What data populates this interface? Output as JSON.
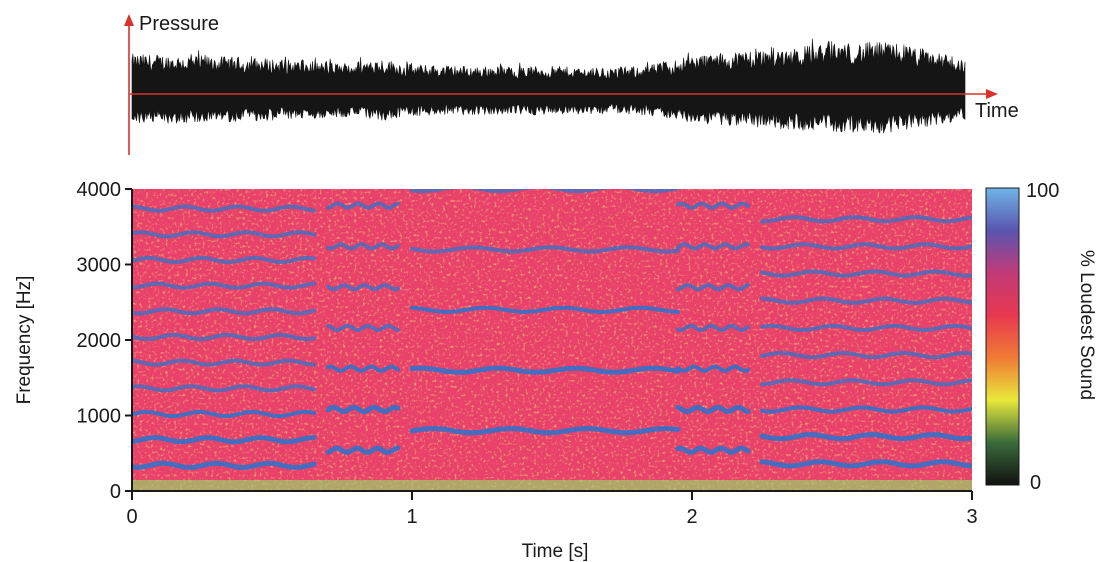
{
  "chart_data": [
    {
      "type": "line",
      "panel": "waveform",
      "title": "",
      "ylabel": "Pressure",
      "xlabel": "Time",
      "grid": false,
      "legend": "none",
      "colors": {
        "axis": "#d9312b",
        "trace": "#151515"
      },
      "x": [
        0,
        0.25,
        0.5,
        0.75,
        0.9,
        1.0,
        1.25,
        1.5,
        1.75,
        1.9,
        2.0,
        2.25,
        2.5,
        2.75,
        3.0
      ],
      "series": [
        {
          "values": [
            0.65,
            0.62,
            0.58,
            0.5,
            0.58,
            0.48,
            0.45,
            0.45,
            0.42,
            0.5,
            0.62,
            0.72,
            0.82,
            0.85,
            0.55
          ]
        }
      ]
    },
    {
      "type": "heatmap",
      "panel": "spectrogram",
      "title": "",
      "xlabel": "Time [s]",
      "ylabel": "Frequency [Hz]",
      "xlim": [
        0,
        3
      ],
      "ylim": [
        0,
        4000
      ],
      "xticks": [
        "0",
        "1",
        "2",
        "3"
      ],
      "yticks": [
        "0",
        "1000",
        "2000",
        "3000",
        "4000"
      ],
      "grid": false,
      "legend": "right",
      "colorbar": {
        "label": "% Loudest Sound",
        "min": 0,
        "max": 100,
        "tick_labels": [
          "0",
          "100"
        ],
        "colors": [
          "#111111",
          "#3a6b3a",
          "#e8e83a",
          "#f07a35",
          "#e8384f",
          "#c23a78",
          "#5a55b0",
          "#6fb4e6"
        ]
      },
      "background_color": "#e8416a",
      "harmonic_color": "#3d6fc4",
      "segments": [
        {
          "t_start": 0.0,
          "t_end": 0.65,
          "f0": 340,
          "harmonics": [
            1,
            2,
            3,
            4,
            5,
            6,
            7,
            8,
            9,
            10,
            11
          ]
        },
        {
          "t_start": 0.7,
          "t_end": 0.95,
          "f0": 540,
          "harmonics": [
            1,
            2,
            3,
            4,
            5,
            6,
            7
          ]
        },
        {
          "t_start": 1.0,
          "t_end": 1.95,
          "f0": 800,
          "harmonics": [
            1,
            2,
            3,
            4,
            5
          ]
        },
        {
          "t_start": 1.95,
          "t_end": 2.2,
          "f0": 540,
          "harmonics": [
            1,
            2,
            3,
            4,
            5,
            6,
            7
          ]
        },
        {
          "t_start": 2.25,
          "t_end": 3.0,
          "f0": 360,
          "harmonics": [
            1,
            2,
            3,
            4,
            5,
            6,
            7,
            8,
            9,
            10
          ]
        }
      ]
    }
  ]
}
